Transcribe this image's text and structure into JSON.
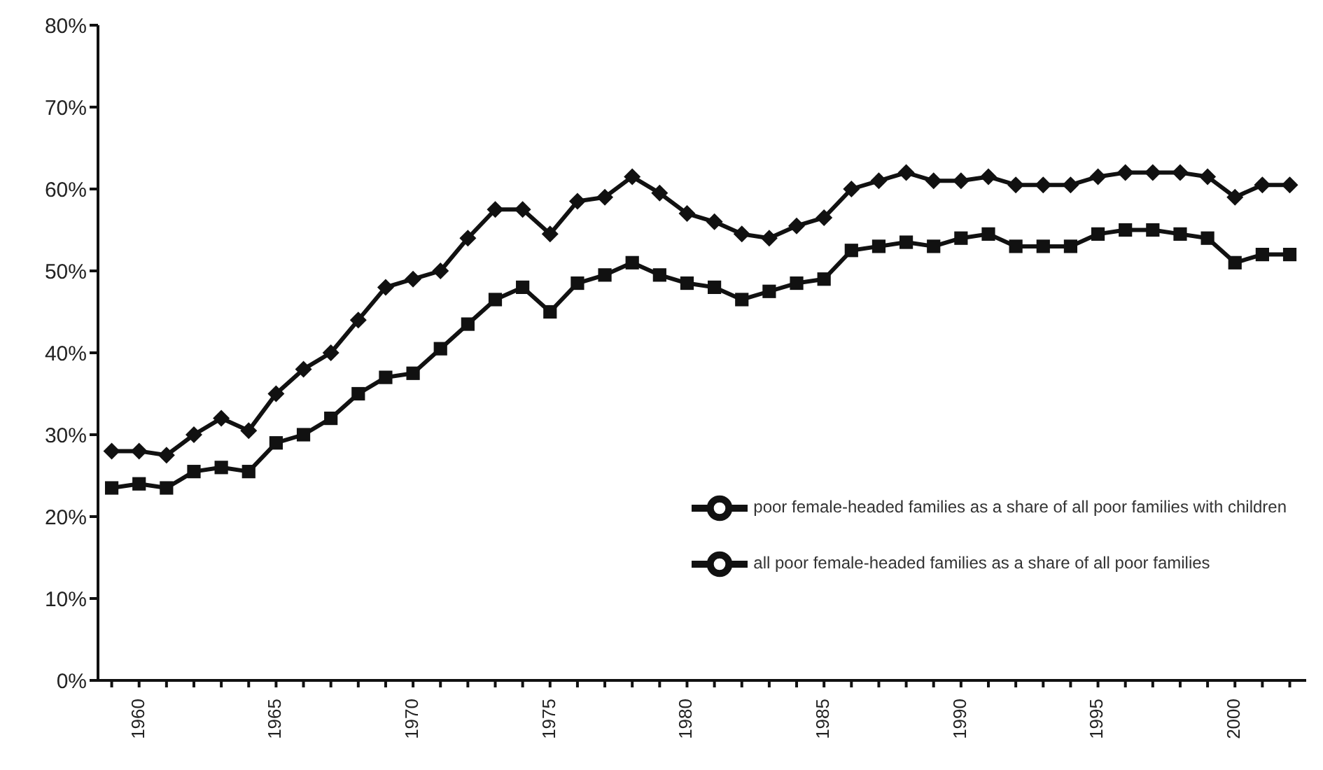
{
  "chart_data": {
    "type": "line",
    "x": [
      1959,
      1960,
      1961,
      1962,
      1963,
      1964,
      1965,
      1966,
      1967,
      1968,
      1969,
      1970,
      1971,
      1972,
      1973,
      1974,
      1975,
      1976,
      1977,
      1978,
      1979,
      1980,
      1981,
      1982,
      1983,
      1984,
      1985,
      1986,
      1987,
      1988,
      1989,
      1990,
      1991,
      1992,
      1993,
      1994,
      1995,
      1996,
      1997,
      1998,
      1999,
      2000,
      2001,
      2002
    ],
    "series": [
      {
        "name": "poor female-headed families as a share of all poor families with children",
        "color": "#111111",
        "marker": "diamond",
        "values": [
          28,
          28,
          27.5,
          30,
          32,
          30.5,
          35,
          38,
          40,
          44,
          48,
          49,
          50,
          54,
          57.5,
          57.5,
          54.5,
          58.5,
          59,
          61.5,
          59.5,
          57,
          56,
          54.5,
          54,
          55.5,
          56.5,
          60,
          61,
          62,
          61,
          61,
          61.5,
          60.5,
          60.5,
          60.5,
          61.5,
          62,
          62,
          62,
          61.5,
          59,
          60.5,
          60.5
        ]
      },
      {
        "name": "all poor female-headed families as a share of all poor families",
        "color": "#111111",
        "marker": "square",
        "values": [
          23.5,
          24,
          23.5,
          25.5,
          26,
          25.5,
          29,
          30,
          32,
          35,
          37,
          37.5,
          40.5,
          43.5,
          46.5,
          48,
          45,
          48.5,
          49.5,
          51,
          49.5,
          48.5,
          48,
          46.5,
          47.5,
          48.5,
          49,
          52.5,
          53,
          53.5,
          53,
          54,
          54.5,
          53,
          53,
          53,
          54.5,
          55,
          55,
          54.5,
          54,
          51,
          52,
          52
        ]
      }
    ],
    "xlim": [
      1958.5,
      2002.6
    ],
    "xticks": [
      {
        "value": 1959,
        "label": null
      },
      {
        "value": 1960,
        "label": "1960"
      },
      {
        "value": 1961,
        "label": null
      },
      {
        "value": 1962,
        "label": null
      },
      {
        "value": 1963,
        "label": null
      },
      {
        "value": 1964,
        "label": null
      },
      {
        "value": 1965,
        "label": "1965"
      },
      {
        "value": 1966,
        "label": null
      },
      {
        "value": 1967,
        "label": null
      },
      {
        "value": 1968,
        "label": null
      },
      {
        "value": 1969,
        "label": null
      },
      {
        "value": 1970,
        "label": "1970"
      },
      {
        "value": 1971,
        "label": null
      },
      {
        "value": 1972,
        "label": null
      },
      {
        "value": 1973,
        "label": null
      },
      {
        "value": 1974,
        "label": null
      },
      {
        "value": 1975,
        "label": "1975"
      },
      {
        "value": 1976,
        "label": null
      },
      {
        "value": 1977,
        "label": null
      },
      {
        "value": 1978,
        "label": null
      },
      {
        "value": 1979,
        "label": null
      },
      {
        "value": 1980,
        "label": "1980"
      },
      {
        "value": 1981,
        "label": null
      },
      {
        "value": 1982,
        "label": null
      },
      {
        "value": 1983,
        "label": null
      },
      {
        "value": 1984,
        "label": null
      },
      {
        "value": 1985,
        "label": "1985"
      },
      {
        "value": 1986,
        "label": null
      },
      {
        "value": 1987,
        "label": null
      },
      {
        "value": 1988,
        "label": null
      },
      {
        "value": 1989,
        "label": null
      },
      {
        "value": 1990,
        "label": "1990"
      },
      {
        "value": 1991,
        "label": null
      },
      {
        "value": 1992,
        "label": null
      },
      {
        "value": 1993,
        "label": null
      },
      {
        "value": 1994,
        "label": null
      },
      {
        "value": 1995,
        "label": "1995"
      },
      {
        "value": 1996,
        "label": null
      },
      {
        "value": 1997,
        "label": null
      },
      {
        "value": 1998,
        "label": null
      },
      {
        "value": 1999,
        "label": null
      },
      {
        "value": 2000,
        "label": "2000"
      },
      {
        "value": 2001,
        "label": null
      },
      {
        "value": 2002,
        "label": null
      }
    ],
    "ylim": [
      0,
      80
    ],
    "yticks": [
      {
        "value": 0,
        "label": "0%"
      },
      {
        "value": 10,
        "label": "10%"
      },
      {
        "value": 20,
        "label": "20%"
      },
      {
        "value": 30,
        "label": "30%"
      },
      {
        "value": 40,
        "label": "40%"
      },
      {
        "value": 50,
        "label": "50%"
      },
      {
        "value": 60,
        "label": "60%"
      },
      {
        "value": 70,
        "label": "70%"
      },
      {
        "value": 80,
        "label": "80%"
      }
    ],
    "grid": false,
    "legend": "right",
    "line_style": "solid"
  }
}
